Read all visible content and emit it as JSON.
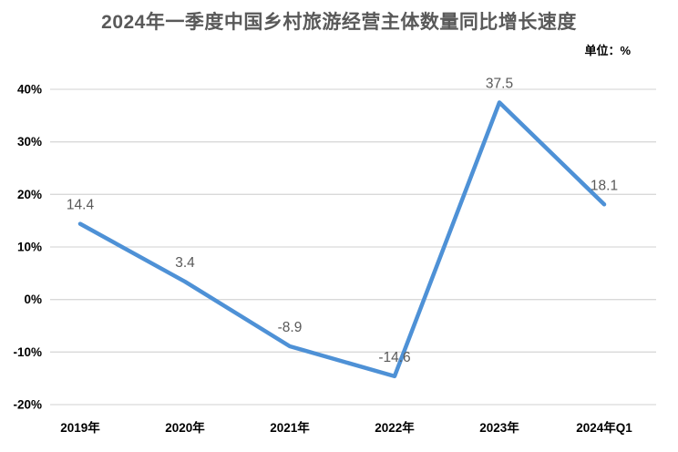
{
  "page": {
    "title": "2024年一季度中国乡村旅游经营主体数量同比增长速度",
    "unit_label": "单位：%"
  },
  "chart_data": {
    "type": "line",
    "title": "2024年一季度中国乡村旅游经营主体数量同比增长速度",
    "unit": "%",
    "categories": [
      "2019年",
      "2020年",
      "2021年",
      "2022年",
      "2023年",
      "2024年Q1"
    ],
    "values": [
      14.4,
      3.4,
      -8.9,
      -14.6,
      37.5,
      18.1
    ],
    "data_labels": [
      "14.4",
      "3.4",
      "-8.9",
      "-14.6",
      "37.5",
      "18.1"
    ],
    "ylim": [
      -20,
      40
    ],
    "y_tick_step": 10,
    "y_tick_labels": [
      "40%",
      "30%",
      "20%",
      "10%",
      "0%",
      "-10%",
      "-20%"
    ],
    "grid": true,
    "legend_position": "none",
    "colors": {
      "line": "#4E91D6",
      "grid": "#D9D9D9",
      "background": "#FFFFFF",
      "title_text": "#595959",
      "data_label_text": "#595959",
      "axis_text": "#000000"
    }
  }
}
